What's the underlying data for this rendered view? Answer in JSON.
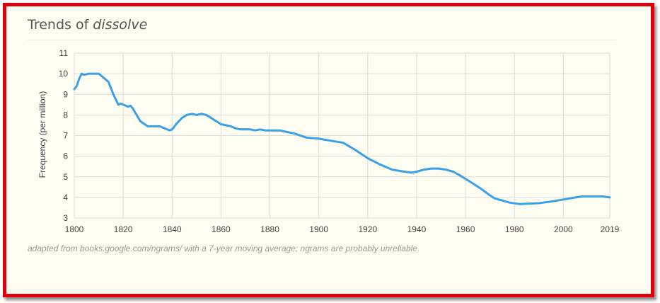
{
  "header": {
    "title_prefix": "Trends of ",
    "title_word": "dissolve"
  },
  "footnote": "adapted from books.google.com/ngrams/ with a 7-year moving average; ngrams are probably unreliable.",
  "colors": {
    "frame": "#e0000b",
    "line": "#3aa0e8",
    "grid": "#dcdcdc",
    "background": "#fffdf2"
  },
  "chart_data": {
    "type": "line",
    "title": "",
    "xlabel": "",
    "ylabel": "Frequency (per million)",
    "xlim": [
      1800,
      2019
    ],
    "ylim": [
      3,
      11
    ],
    "xticks": [
      1800,
      1820,
      1840,
      1860,
      1880,
      1900,
      1920,
      1940,
      1960,
      1980,
      2000,
      2019
    ],
    "yticks": [
      3,
      4,
      5,
      6,
      7,
      8,
      9,
      10,
      11
    ],
    "grid": true,
    "legend": "none",
    "series": [
      {
        "x": [
          1800,
          1801,
          1802,
          1803,
          1804,
          1806,
          1808,
          1810,
          1812,
          1814,
          1816,
          1818,
          1819,
          1820,
          1822,
          1823,
          1824,
          1825,
          1827,
          1830,
          1832,
          1835,
          1838,
          1839,
          1840,
          1842,
          1844,
          1846,
          1848,
          1850,
          1852,
          1854,
          1856,
          1858,
          1860,
          1862,
          1864,
          1866,
          1868,
          1870,
          1872,
          1874,
          1876,
          1878,
          1880,
          1882,
          1884,
          1886,
          1890,
          1895,
          1900,
          1905,
          1910,
          1915,
          1920,
          1925,
          1930,
          1935,
          1938,
          1940,
          1943,
          1946,
          1949,
          1952,
          1955,
          1958,
          1962,
          1966,
          1970,
          1972,
          1975,
          1978,
          1982,
          1986,
          1990,
          1995,
          2000,
          2005,
          2008,
          2012,
          2016,
          2019
        ],
        "values": [
          9.25,
          9.4,
          9.75,
          10.0,
          9.95,
          10.0,
          10.0,
          10.0,
          9.8,
          9.6,
          9.0,
          8.5,
          8.55,
          8.5,
          8.4,
          8.45,
          8.3,
          8.1,
          7.7,
          7.45,
          7.45,
          7.45,
          7.3,
          7.25,
          7.3,
          7.6,
          7.85,
          8.0,
          8.05,
          8.0,
          8.05,
          8.0,
          7.85,
          7.7,
          7.55,
          7.5,
          7.45,
          7.35,
          7.3,
          7.3,
          7.3,
          7.25,
          7.3,
          7.25,
          7.25,
          7.25,
          7.25,
          7.2,
          7.1,
          6.9,
          6.85,
          6.75,
          6.65,
          6.3,
          5.9,
          5.6,
          5.35,
          5.25,
          5.2,
          5.25,
          5.35,
          5.4,
          5.4,
          5.35,
          5.25,
          5.05,
          4.75,
          4.45,
          4.1,
          3.95,
          3.85,
          3.75,
          3.68,
          3.7,
          3.72,
          3.8,
          3.9,
          4.0,
          4.05,
          4.05,
          4.05,
          4.0
        ]
      }
    ]
  }
}
